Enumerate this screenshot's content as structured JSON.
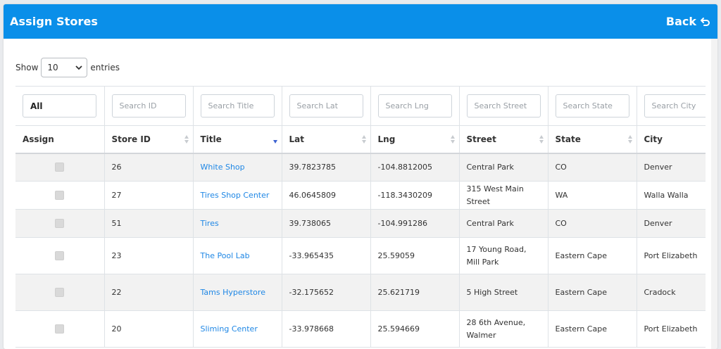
{
  "header": {
    "title": "Assign Stores",
    "back_label": "Back",
    "back_icon": "undo-arrow-icon",
    "bg_color": "#0a8fe9"
  },
  "length": {
    "show_label": "Show",
    "selected": "10",
    "entries_label": "entries"
  },
  "filters": {
    "assign": "All",
    "store_id": "Search ID",
    "title": "Search Title",
    "lat": "Search Lat",
    "lng": "Search Lng",
    "street": "Search Street",
    "state": "Search State",
    "city": "Search City"
  },
  "columns": [
    "Assign",
    "Store ID",
    "Title",
    "Lat",
    "Lng",
    "Street",
    "State",
    "City"
  ],
  "rows": [
    {
      "id": "26",
      "title": "White Shop",
      "lat": "39.7823785",
      "lng": "-104.8812005",
      "street": "Central Park",
      "state": "CO",
      "city": "Denver"
    },
    {
      "id": "27",
      "title": "Tires Shop Center",
      "lat": "46.0645809",
      "lng": "-118.3430209",
      "street": "315 West Main Street",
      "state": "WA",
      "city": "Walla Walla"
    },
    {
      "id": "51",
      "title": "Tires",
      "lat": "39.738065",
      "lng": "-104.991286",
      "street": "Central Park",
      "state": "CO",
      "city": "Denver"
    },
    {
      "id": "23",
      "title": "The Pool Lab",
      "lat": "-33.965435",
      "lng": "25.59059",
      "street": "17 Young Road, Mill Park",
      "state": "Eastern Cape",
      "city": "Port Elizabeth"
    },
    {
      "id": "22",
      "title": "Tams Hyperstore",
      "lat": "-32.175652",
      "lng": "25.621719",
      "street": "5 High Street",
      "state": "Eastern Cape",
      "city": "Cradock"
    },
    {
      "id": "20",
      "title": "Sliming Center",
      "lat": "-33.978668",
      "lng": "25.594669",
      "street": "28 6th Avenue, Walmer",
      "state": "Eastern Cape",
      "city": "Port Elizabeth"
    }
  ]
}
